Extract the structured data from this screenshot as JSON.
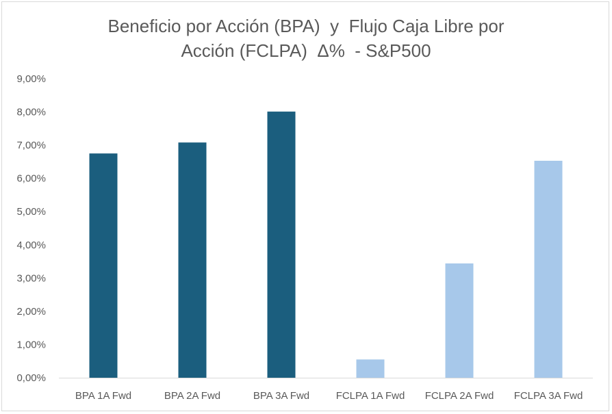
{
  "chart_data": {
    "type": "bar",
    "title_lines": [
      "Beneficio por Acción (BPA)  y  Flujo Caja Libre por",
      "Acción (FCLPA)  Δ%  - S&P500"
    ],
    "categories": [
      "BPA 1A Fwd",
      "BPA 2A Fwd",
      "BPA 3A Fwd",
      "FCLPA 1A Fwd",
      "FCLPA 2A Fwd",
      "FCLPA 3A Fwd"
    ],
    "values": [
      6.75,
      7.08,
      8.01,
      0.55,
      3.44,
      6.53
    ],
    "bar_colors": [
      "#1b5e7e",
      "#1b5e7e",
      "#1b5e7e",
      "#a7c8ea",
      "#a7c8ea",
      "#a7c8ea"
    ],
    "ylim": [
      0,
      9
    ],
    "ytick_values": [
      0,
      1,
      2,
      3,
      4,
      5,
      6,
      7,
      8,
      9
    ],
    "ytick_labels": [
      "0,00%",
      "1,00%",
      "2,00%",
      "3,00%",
      "4,00%",
      "5,00%",
      "6,00%",
      "7,00%",
      "8,00%",
      "9,00%"
    ],
    "grid": false,
    "xlabel": "",
    "ylabel": ""
  }
}
